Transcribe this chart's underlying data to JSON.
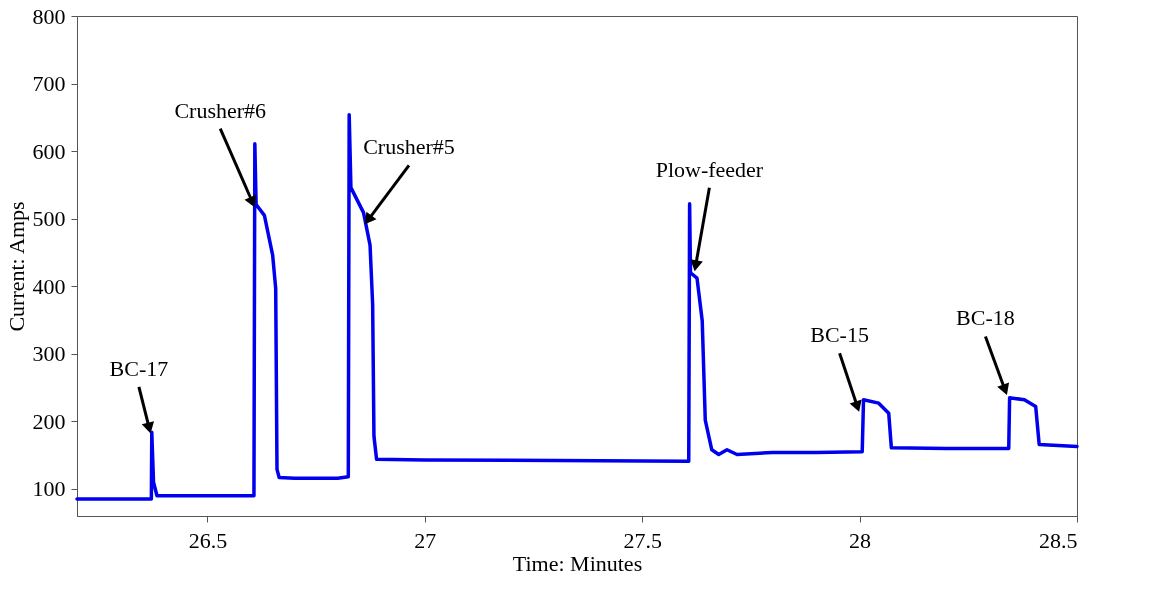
{
  "chart_data": {
    "type": "line",
    "xlabel": "Time: Minutes",
    "ylabel": "Current: Amps",
    "xlim": [
      26.2,
      28.5
    ],
    "xticks": [
      26.5,
      27,
      27.5,
      28,
      28.5
    ],
    "ylim": [
      60,
      800
    ],
    "yticks": [
      100,
      200,
      300,
      400,
      500,
      600,
      700,
      800
    ],
    "grid": false,
    "legend": false,
    "marker": "none",
    "line_style": "solid",
    "series": [
      {
        "color": "#0000ee",
        "x": [
          26.2,
          26.371,
          26.372,
          26.376,
          26.384,
          26.5,
          26.607,
          26.609,
          26.612,
          26.631,
          26.65,
          26.657,
          26.66,
          26.665,
          26.7,
          26.8,
          26.824,
          26.826,
          26.83,
          26.859,
          26.874,
          26.88,
          26.883,
          26.889,
          27.0,
          27.3,
          27.607,
          27.609,
          27.611,
          27.626,
          27.638,
          27.645,
          27.66,
          27.676,
          27.695,
          27.718,
          27.8,
          27.9,
          28.006,
          28.009,
          28.044,
          28.067,
          28.073,
          28.2,
          28.343,
          28.345,
          28.379,
          28.405,
          28.413,
          28.5
        ],
        "values": [
          85,
          85,
          184,
          110,
          90,
          90,
          90,
          611,
          521,
          505,
          446,
          397,
          129,
          117,
          116,
          116,
          118,
          654,
          546,
          509,
          461,
          373,
          178,
          144,
          143,
          142,
          141,
          522,
          420,
          412,
          349,
          202,
          158,
          151,
          158,
          151,
          154,
          154,
          155,
          232,
          227,
          212,
          161,
          160,
          160,
          235,
          232,
          222,
          166,
          163
        ]
      }
    ],
    "annotations": [
      {
        "text": "BC-17",
        "x": 26.37,
        "y": 180
      },
      {
        "text": "Crusher#6",
        "x": 26.61,
        "y": 515
      },
      {
        "text": "Crusher#5",
        "x": 26.86,
        "y": 490
      },
      {
        "text": "Plow-feeder",
        "x": 27.62,
        "y": 420
      },
      {
        "text": "BC-15",
        "x": 28.0,
        "y": 212
      },
      {
        "text": "BC-18",
        "x": 28.34,
        "y": 237
      }
    ]
  }
}
